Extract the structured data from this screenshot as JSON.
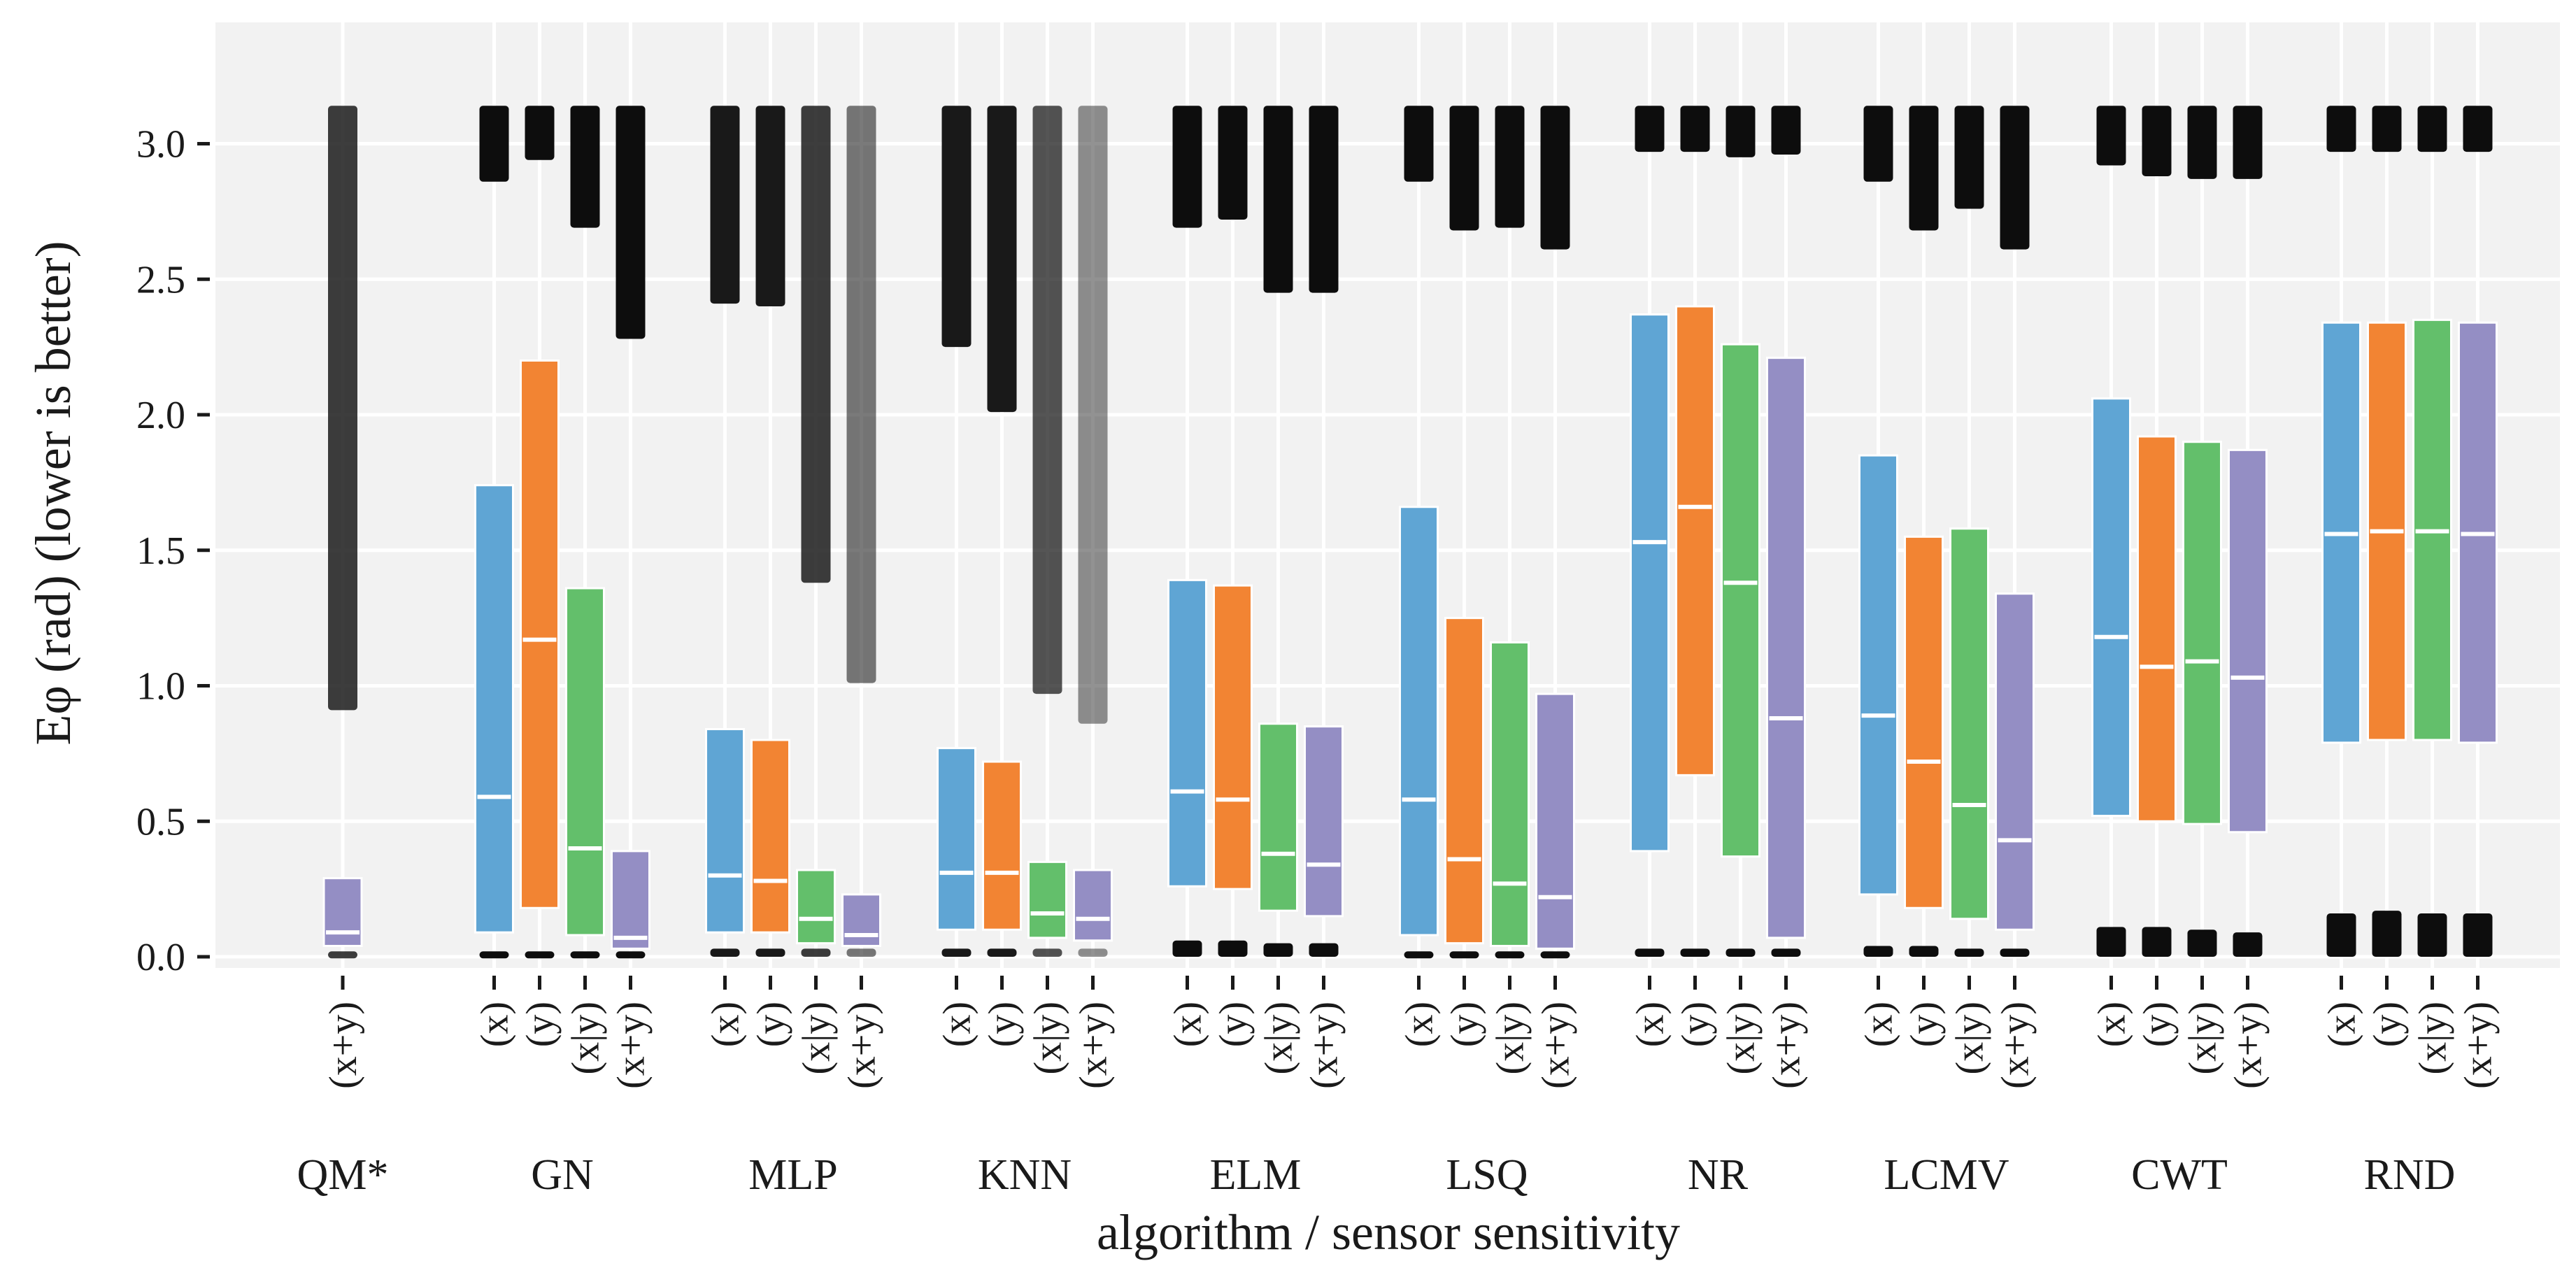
{
  "chart_data": {
    "type": "box",
    "xlabel": "algorithm / sensor sensitivity",
    "ylabel": "Eφ (rad) (lower is better)",
    "ylim": [
      -0.05,
      3.45
    ],
    "yticks": [
      "0.0",
      "0.5",
      "1.0",
      "1.5",
      "2.0",
      "2.5",
      "3.0"
    ],
    "ytick_values": [
      0.0,
      0.5,
      1.0,
      1.5,
      2.0,
      2.5,
      3.0
    ],
    "grid": true,
    "series_colors": {
      "(x)": "#5fa5d4",
      "(y)": "#f28433",
      "(x|y)": "#63bf6b",
      "(x+y)": "#948ec4"
    },
    "groups": [
      {
        "name": "QM*",
        "boxes": [
          {
            "sensor": "(x+y)",
            "q1": 0.04,
            "median": 0.09,
            "q3": 0.29,
            "outlier_bands": [
              [
                0.91,
                3.14
              ],
              [
                0.0,
                0.02
              ]
            ],
            "outlier_density": 0.8
          }
        ]
      },
      {
        "name": "GN",
        "boxes": [
          {
            "sensor": "(x)",
            "q1": 0.09,
            "median": 0.59,
            "q3": 1.74,
            "outlier_bands": [
              [
                2.86,
                3.14
              ],
              [
                0.0,
                0.02
              ]
            ],
            "outlier_density": 1.0
          },
          {
            "sensor": "(y)",
            "q1": 0.18,
            "median": 1.17,
            "q3": 2.2,
            "outlier_bands": [
              [
                2.94,
                3.14
              ],
              [
                0.0,
                0.02
              ]
            ],
            "outlier_density": 1.0
          },
          {
            "sensor": "(x|y)",
            "q1": 0.08,
            "median": 0.4,
            "q3": 1.36,
            "outlier_bands": [
              [
                2.69,
                3.14
              ],
              [
                0.0,
                0.02
              ]
            ],
            "outlier_density": 1.0
          },
          {
            "sensor": "(x+y)",
            "q1": 0.03,
            "median": 0.07,
            "q3": 0.39,
            "outlier_bands": [
              [
                2.28,
                3.14
              ],
              [
                0.0,
                0.02
              ]
            ],
            "outlier_density": 1.0
          }
        ]
      },
      {
        "name": "MLP",
        "boxes": [
          {
            "sensor": "(x)",
            "q1": 0.09,
            "median": 0.3,
            "q3": 0.84,
            "outlier_bands": [
              [
                2.41,
                3.14
              ],
              [
                0.0,
                0.03
              ]
            ],
            "outlier_density": 0.95
          },
          {
            "sensor": "(y)",
            "q1": 0.09,
            "median": 0.28,
            "q3": 0.8,
            "outlier_bands": [
              [
                2.4,
                3.14
              ],
              [
                0.0,
                0.03
              ]
            ],
            "outlier_density": 0.95
          },
          {
            "sensor": "(x|y)",
            "q1": 0.05,
            "median": 0.14,
            "q3": 0.32,
            "outlier_bands": [
              [
                1.38,
                3.14
              ],
              [
                0.0,
                0.03
              ]
            ],
            "outlier_density": 0.8
          },
          {
            "sensor": "(x+y)",
            "q1": 0.04,
            "median": 0.08,
            "q3": 0.23,
            "outlier_bands": [
              [
                1.01,
                3.14
              ],
              [
                0.0,
                0.03
              ]
            ],
            "outlier_density": 0.55
          }
        ]
      },
      {
        "name": "KNN",
        "boxes": [
          {
            "sensor": "(x)",
            "q1": 0.1,
            "median": 0.31,
            "q3": 0.77,
            "outlier_bands": [
              [
                2.25,
                3.14
              ],
              [
                0.0,
                0.03
              ]
            ],
            "outlier_density": 0.95
          },
          {
            "sensor": "(y)",
            "q1": 0.1,
            "median": 0.31,
            "q3": 0.72,
            "outlier_bands": [
              [
                2.01,
                3.14
              ],
              [
                0.0,
                0.03
              ]
            ],
            "outlier_density": 0.95
          },
          {
            "sensor": "(x|y)",
            "q1": 0.07,
            "median": 0.16,
            "q3": 0.35,
            "outlier_bands": [
              [
                0.97,
                3.14
              ],
              [
                0.0,
                0.03
              ]
            ],
            "outlier_density": 0.7
          },
          {
            "sensor": "(x+y)",
            "q1": 0.06,
            "median": 0.14,
            "q3": 0.32,
            "outlier_bands": [
              [
                0.86,
                3.14
              ],
              [
                0.0,
                0.03
              ]
            ],
            "outlier_density": 0.45
          }
        ]
      },
      {
        "name": "ELM",
        "boxes": [
          {
            "sensor": "(x)",
            "q1": 0.26,
            "median": 0.61,
            "q3": 1.39,
            "outlier_bands": [
              [
                2.69,
                3.14
              ],
              [
                0.0,
                0.06
              ]
            ],
            "outlier_density": 1.0
          },
          {
            "sensor": "(y)",
            "q1": 0.25,
            "median": 0.58,
            "q3": 1.37,
            "outlier_bands": [
              [
                2.72,
                3.14
              ],
              [
                0.0,
                0.06
              ]
            ],
            "outlier_density": 1.0
          },
          {
            "sensor": "(x|y)",
            "q1": 0.17,
            "median": 0.38,
            "q3": 0.86,
            "outlier_bands": [
              [
                2.45,
                3.14
              ],
              [
                0.0,
                0.05
              ]
            ],
            "outlier_density": 1.0
          },
          {
            "sensor": "(x+y)",
            "q1": 0.15,
            "median": 0.34,
            "q3": 0.85,
            "outlier_bands": [
              [
                2.45,
                3.14
              ],
              [
                0.0,
                0.05
              ]
            ],
            "outlier_density": 1.0
          }
        ]
      },
      {
        "name": "LSQ",
        "boxes": [
          {
            "sensor": "(x)",
            "q1": 0.08,
            "median": 0.58,
            "q3": 1.66,
            "outlier_bands": [
              [
                2.86,
                3.14
              ],
              [
                0.0,
                0.02
              ]
            ],
            "outlier_density": 1.0
          },
          {
            "sensor": "(y)",
            "q1": 0.05,
            "median": 0.36,
            "q3": 1.25,
            "outlier_bands": [
              [
                2.68,
                3.14
              ],
              [
                0.0,
                0.02
              ]
            ],
            "outlier_density": 1.0
          },
          {
            "sensor": "(x|y)",
            "q1": 0.04,
            "median": 0.27,
            "q3": 1.16,
            "outlier_bands": [
              [
                2.69,
                3.14
              ],
              [
                0.0,
                0.02
              ]
            ],
            "outlier_density": 1.0
          },
          {
            "sensor": "(x+y)",
            "q1": 0.03,
            "median": 0.22,
            "q3": 0.97,
            "outlier_bands": [
              [
                2.61,
                3.14
              ],
              [
                0.0,
                0.02
              ]
            ],
            "outlier_density": 1.0
          }
        ]
      },
      {
        "name": "NR",
        "boxes": [
          {
            "sensor": "(x)",
            "q1": 0.39,
            "median": 1.53,
            "q3": 2.37,
            "outlier_bands": [
              [
                2.97,
                3.14
              ],
              [
                0.0,
                0.03
              ]
            ],
            "outlier_density": 1.0
          },
          {
            "sensor": "(y)",
            "q1": 0.67,
            "median": 1.66,
            "q3": 2.4,
            "outlier_bands": [
              [
                2.97,
                3.14
              ],
              [
                0.0,
                0.03
              ]
            ],
            "outlier_density": 1.0
          },
          {
            "sensor": "(x|y)",
            "q1": 0.37,
            "median": 1.38,
            "q3": 2.26,
            "outlier_bands": [
              [
                2.95,
                3.14
              ],
              [
                0.0,
                0.03
              ]
            ],
            "outlier_density": 1.0
          },
          {
            "sensor": "(x+y)",
            "q1": 0.07,
            "median": 0.88,
            "q3": 2.21,
            "outlier_bands": [
              [
                2.96,
                3.14
              ],
              [
                0.0,
                0.03
              ]
            ],
            "outlier_density": 1.0
          }
        ]
      },
      {
        "name": "LCMV",
        "boxes": [
          {
            "sensor": "(x)",
            "q1": 0.23,
            "median": 0.89,
            "q3": 1.85,
            "outlier_bands": [
              [
                2.86,
                3.14
              ],
              [
                0.0,
                0.04
              ]
            ],
            "outlier_density": 1.0
          },
          {
            "sensor": "(y)",
            "q1": 0.18,
            "median": 0.72,
            "q3": 1.55,
            "outlier_bands": [
              [
                2.68,
                3.14
              ],
              [
                0.0,
                0.04
              ]
            ],
            "outlier_density": 1.0
          },
          {
            "sensor": "(x|y)",
            "q1": 0.14,
            "median": 0.56,
            "q3": 1.58,
            "outlier_bands": [
              [
                2.76,
                3.14
              ],
              [
                0.0,
                0.03
              ]
            ],
            "outlier_density": 1.0
          },
          {
            "sensor": "(x+y)",
            "q1": 0.1,
            "median": 0.43,
            "q3": 1.34,
            "outlier_bands": [
              [
                2.61,
                3.14
              ],
              [
                0.0,
                0.03
              ]
            ],
            "outlier_density": 1.0
          }
        ]
      },
      {
        "name": "CWT",
        "boxes": [
          {
            "sensor": "(x)",
            "q1": 0.52,
            "median": 1.18,
            "q3": 2.06,
            "outlier_bands": [
              [
                2.92,
                3.14
              ],
              [
                0.0,
                0.11
              ]
            ],
            "outlier_density": 1.0
          },
          {
            "sensor": "(y)",
            "q1": 0.5,
            "median": 1.07,
            "q3": 1.92,
            "outlier_bands": [
              [
                2.88,
                3.14
              ],
              [
                0.0,
                0.11
              ]
            ],
            "outlier_density": 1.0
          },
          {
            "sensor": "(x|y)",
            "q1": 0.49,
            "median": 1.09,
            "q3": 1.9,
            "outlier_bands": [
              [
                2.87,
                3.14
              ],
              [
                0.0,
                0.1
              ]
            ],
            "outlier_density": 1.0
          },
          {
            "sensor": "(x+y)",
            "q1": 0.46,
            "median": 1.03,
            "q3": 1.87,
            "outlier_bands": [
              [
                2.87,
                3.14
              ],
              [
                0.0,
                0.09
              ]
            ],
            "outlier_density": 1.0
          }
        ]
      },
      {
        "name": "RND",
        "boxes": [
          {
            "sensor": "(x)",
            "q1": 0.79,
            "median": 1.56,
            "q3": 2.34,
            "outlier_bands": [
              [
                2.97,
                3.14
              ],
              [
                0.0,
                0.16
              ]
            ],
            "outlier_density": 1.0
          },
          {
            "sensor": "(y)",
            "q1": 0.8,
            "median": 1.57,
            "q3": 2.34,
            "outlier_bands": [
              [
                2.97,
                3.14
              ],
              [
                0.0,
                0.17
              ]
            ],
            "outlier_density": 1.0
          },
          {
            "sensor": "(x|y)",
            "q1": 0.8,
            "median": 1.57,
            "q3": 2.35,
            "outlier_bands": [
              [
                2.97,
                3.14
              ],
              [
                0.0,
                0.16
              ]
            ],
            "outlier_density": 1.0
          },
          {
            "sensor": "(x+y)",
            "q1": 0.79,
            "median": 1.56,
            "q3": 2.34,
            "outlier_bands": [
              [
                2.97,
                3.14
              ],
              [
                0.0,
                0.16
              ]
            ],
            "outlier_density": 1.0
          }
        ]
      }
    ]
  }
}
